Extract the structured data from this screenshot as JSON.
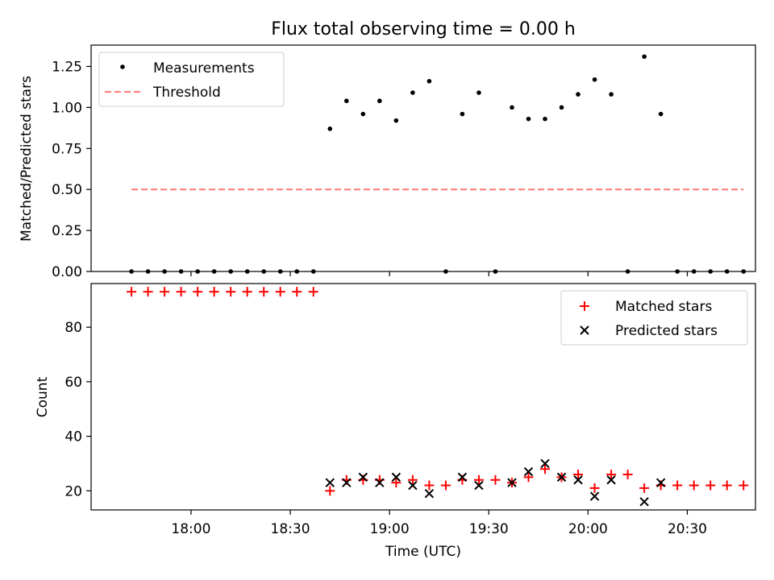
{
  "title": "Flux total observing time = 0.00 h",
  "xlabel": "Time (UTC)",
  "xticks": [
    "18:00",
    "18:30",
    "19:00",
    "19:30",
    "20:00",
    "20:30"
  ],
  "colors": {
    "measurements": "#000000",
    "threshold": "#ff8080",
    "matched": "#ff0000",
    "predicted": "#000000"
  },
  "chart_data": [
    {
      "type": "scatter",
      "ylabel": "Matched/Predicted stars",
      "ylim": [
        0,
        1.38
      ],
      "yticks": [
        "0.00",
        "0.25",
        "0.50",
        "0.75",
        "1.00",
        "1.25"
      ],
      "legend_position": "top-left",
      "threshold": {
        "name": "Threshold",
        "value": 0.5,
        "x_start": "17:42",
        "x_end": "20:47",
        "style": "dashed"
      },
      "series": [
        {
          "name": "Measurements",
          "marker": "dot",
          "x": [
            "17:42",
            "17:47",
            "17:52",
            "17:57",
            "18:02",
            "18:07",
            "18:12",
            "18:17",
            "18:22",
            "18:27",
            "18:32",
            "18:37",
            "18:42",
            "18:47",
            "18:52",
            "18:57",
            "19:02",
            "19:07",
            "19:12",
            "19:17",
            "19:22",
            "19:27",
            "19:32",
            "19:37",
            "19:42",
            "19:47",
            "19:52",
            "19:57",
            "20:02",
            "20:07",
            "20:12",
            "20:17",
            "20:22",
            "20:27",
            "20:32",
            "20:37",
            "20:42",
            "20:47"
          ],
          "y": [
            0,
            0,
            0,
            0,
            0,
            0,
            0,
            0,
            0,
            0,
            0,
            0,
            0.87,
            1.04,
            0.96,
            1.04,
            0.92,
            1.09,
            1.16,
            0,
            0.96,
            1.09,
            0,
            1.0,
            0.93,
            0.93,
            1.0,
            1.08,
            1.17,
            1.08,
            0,
            1.31,
            0.96,
            0,
            0,
            0,
            0,
            0
          ]
        }
      ]
    },
    {
      "type": "scatter",
      "ylabel": "Count",
      "ylim": [
        13,
        96
      ],
      "yticks": [
        "20",
        "40",
        "60",
        "80"
      ],
      "legend_position": "top-right",
      "series": [
        {
          "name": "Matched stars",
          "marker": "plus",
          "x": [
            "17:42",
            "17:47",
            "17:52",
            "17:57",
            "18:02",
            "18:07",
            "18:12",
            "18:17",
            "18:22",
            "18:27",
            "18:32",
            "18:37",
            "18:42",
            "18:47",
            "18:52",
            "18:57",
            "19:02",
            "19:07",
            "19:12",
            "19:17",
            "19:22",
            "19:27",
            "19:32",
            "19:37",
            "19:42",
            "19:47",
            "19:52",
            "19:57",
            "20:02",
            "20:07",
            "20:12",
            "20:17",
            "20:22",
            "20:27",
            "20:32",
            "20:37",
            "20:42",
            "20:47"
          ],
          "y": [
            93,
            93,
            93,
            93,
            93,
            93,
            93,
            93,
            93,
            93,
            93,
            93,
            20,
            24,
            24,
            24,
            23,
            24,
            22,
            22,
            24,
            24,
            24,
            23,
            25,
            28,
            25,
            26,
            21,
            26,
            26,
            21,
            22,
            22,
            22,
            22,
            22,
            22
          ]
        },
        {
          "name": "Predicted stars",
          "marker": "x",
          "x": [
            "18:42",
            "18:47",
            "18:52",
            "18:57",
            "19:02",
            "19:07",
            "19:12",
            "19:22",
            "19:27",
            "19:37",
            "19:42",
            "19:47",
            "19:52",
            "19:57",
            "20:02",
            "20:07",
            "20:17",
            "20:22"
          ],
          "y": [
            23,
            23,
            25,
            23,
            25,
            22,
            19,
            25,
            22,
            23,
            27,
            30,
            25,
            24,
            18,
            24,
            16,
            23
          ]
        }
      ]
    }
  ]
}
